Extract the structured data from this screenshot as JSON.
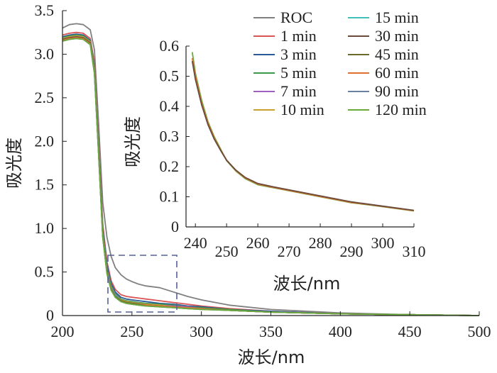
{
  "chart_data": [
    {
      "type": "line",
      "xlabel": "波长/nm",
      "ylabel": "吸光度",
      "xlim": [
        200,
        500
      ],
      "ylim": [
        0,
        3.5
      ],
      "xticks": [
        "200",
        "250",
        "300",
        "350",
        "400",
        "450",
        "500"
      ],
      "yticks": [
        "0",
        "0.5",
        "1.0",
        "1.5",
        "2.0",
        "2.5",
        "3.0",
        "3.5"
      ],
      "grid": false,
      "legend_position": "top-right",
      "series": [
        {
          "name": "ROC",
          "color": "#808080",
          "x": [
            200,
            205,
            210,
            215,
            220,
            223,
            226,
            229,
            232,
            235,
            238,
            242,
            246,
            250,
            255,
            260,
            270,
            280,
            290,
            300,
            320,
            350,
            400,
            450,
            500
          ],
          "y": [
            3.3,
            3.34,
            3.35,
            3.34,
            3.28,
            3.05,
            2.2,
            1.3,
            0.9,
            0.68,
            0.55,
            0.47,
            0.42,
            0.39,
            0.36,
            0.34,
            0.32,
            0.27,
            0.22,
            0.18,
            0.12,
            0.07,
            0.03,
            0.01,
            0.0
          ]
        },
        {
          "name": "1 min",
          "color": "#d95555",
          "x": [
            200,
            205,
            210,
            215,
            220,
            223,
            226,
            229,
            232,
            235,
            238,
            242,
            246,
            250,
            255,
            260,
            270,
            280,
            290,
            300,
            320,
            350,
            400,
            450,
            500
          ],
          "y": [
            3.22,
            3.24,
            3.25,
            3.24,
            3.18,
            2.9,
            2.0,
            1.05,
            0.62,
            0.4,
            0.3,
            0.24,
            0.22,
            0.21,
            0.2,
            0.19,
            0.17,
            0.15,
            0.13,
            0.11,
            0.08,
            0.05,
            0.02,
            0.01,
            0.0
          ]
        },
        {
          "name": "3 min",
          "color": "#2a5a9a",
          "x": [
            200,
            205,
            210,
            215,
            220,
            223,
            226,
            229,
            232,
            235,
            238,
            242,
            246,
            250,
            255,
            260,
            270,
            280,
            290,
            300,
            320,
            350,
            400,
            450,
            500
          ],
          "y": [
            3.2,
            3.22,
            3.23,
            3.22,
            3.16,
            2.86,
            1.95,
            1.0,
            0.58,
            0.37,
            0.27,
            0.21,
            0.19,
            0.18,
            0.17,
            0.16,
            0.14,
            0.13,
            0.11,
            0.1,
            0.07,
            0.05,
            0.02,
            0.01,
            0.0
          ]
        },
        {
          "name": "5 min",
          "color": "#3a9a4a",
          "x": [
            200,
            205,
            210,
            215,
            220,
            223,
            226,
            229,
            232,
            235,
            238,
            242,
            246,
            250,
            255,
            260,
            270,
            280,
            290,
            300,
            320,
            350,
            400,
            450,
            500
          ],
          "y": [
            3.19,
            3.21,
            3.22,
            3.21,
            3.15,
            2.84,
            1.92,
            0.97,
            0.55,
            0.35,
            0.25,
            0.19,
            0.17,
            0.16,
            0.15,
            0.14,
            0.13,
            0.12,
            0.1,
            0.09,
            0.07,
            0.04,
            0.02,
            0.01,
            0.0
          ]
        },
        {
          "name": "7 min",
          "color": "#a060c0",
          "x": [
            200,
            205,
            210,
            215,
            220,
            223,
            226,
            229,
            232,
            235,
            238,
            242,
            246,
            250,
            255,
            260,
            270,
            280,
            290,
            300,
            320,
            350,
            400,
            450,
            500
          ],
          "y": [
            3.18,
            3.2,
            3.21,
            3.2,
            3.14,
            2.82,
            1.9,
            0.95,
            0.53,
            0.33,
            0.24,
            0.18,
            0.16,
            0.15,
            0.14,
            0.13,
            0.12,
            0.11,
            0.1,
            0.08,
            0.06,
            0.04,
            0.02,
            0.01,
            0.0
          ]
        },
        {
          "name": "10 min",
          "color": "#c8a030",
          "x": [
            200,
            205,
            210,
            215,
            220,
            223,
            226,
            229,
            232,
            235,
            238,
            242,
            246,
            250,
            255,
            260,
            270,
            280,
            290,
            300,
            320,
            350,
            400,
            450,
            500
          ],
          "y": [
            3.18,
            3.2,
            3.21,
            3.2,
            3.14,
            2.82,
            1.89,
            0.94,
            0.52,
            0.32,
            0.23,
            0.18,
            0.16,
            0.15,
            0.14,
            0.13,
            0.12,
            0.1,
            0.09,
            0.08,
            0.06,
            0.04,
            0.02,
            0.01,
            0.0
          ]
        },
        {
          "name": "15 min",
          "color": "#40c0b8",
          "x": [
            200,
            205,
            210,
            215,
            220,
            223,
            226,
            229,
            232,
            235,
            238,
            242,
            246,
            250,
            255,
            260,
            270,
            280,
            290,
            300,
            320,
            350,
            400,
            450,
            500
          ],
          "y": [
            3.17,
            3.19,
            3.2,
            3.19,
            3.13,
            2.8,
            1.88,
            0.93,
            0.51,
            0.31,
            0.23,
            0.17,
            0.15,
            0.14,
            0.13,
            0.12,
            0.11,
            0.1,
            0.09,
            0.08,
            0.06,
            0.04,
            0.02,
            0.01,
            0.0
          ]
        },
        {
          "name": "30 min",
          "color": "#6a4a3a",
          "x": [
            200,
            205,
            210,
            215,
            220,
            223,
            226,
            229,
            232,
            235,
            238,
            242,
            246,
            250,
            255,
            260,
            270,
            280,
            290,
            300,
            320,
            350,
            400,
            450,
            500
          ],
          "y": [
            3.17,
            3.19,
            3.2,
            3.19,
            3.13,
            2.8,
            1.87,
            0.92,
            0.5,
            0.31,
            0.22,
            0.17,
            0.15,
            0.14,
            0.13,
            0.12,
            0.11,
            0.1,
            0.09,
            0.08,
            0.06,
            0.04,
            0.02,
            0.01,
            0.0
          ]
        },
        {
          "name": "45 min",
          "color": "#6a6a2a",
          "x": [
            200,
            205,
            210,
            215,
            220,
            223,
            226,
            229,
            232,
            235,
            238,
            242,
            246,
            250,
            255,
            260,
            270,
            280,
            290,
            300,
            320,
            350,
            400,
            450,
            500
          ],
          "y": [
            3.16,
            3.18,
            3.19,
            3.18,
            3.12,
            2.79,
            1.86,
            0.91,
            0.5,
            0.3,
            0.22,
            0.17,
            0.15,
            0.14,
            0.13,
            0.12,
            0.11,
            0.1,
            0.09,
            0.08,
            0.06,
            0.04,
            0.02,
            0.01,
            0.0
          ]
        },
        {
          "name": "60 min",
          "color": "#e07030",
          "x": [
            200,
            205,
            210,
            215,
            220,
            223,
            226,
            229,
            232,
            235,
            238,
            242,
            246,
            250,
            255,
            260,
            270,
            280,
            290,
            300,
            320,
            350,
            400,
            450,
            500
          ],
          "y": [
            3.16,
            3.18,
            3.19,
            3.18,
            3.12,
            2.79,
            1.86,
            0.91,
            0.49,
            0.3,
            0.21,
            0.16,
            0.14,
            0.13,
            0.12,
            0.12,
            0.11,
            0.1,
            0.09,
            0.08,
            0.06,
            0.04,
            0.02,
            0.01,
            0.0
          ]
        },
        {
          "name": "90 min",
          "color": "#6a80a0",
          "x": [
            200,
            205,
            210,
            215,
            220,
            223,
            226,
            229,
            232,
            235,
            238,
            242,
            246,
            250,
            255,
            260,
            270,
            280,
            290,
            300,
            320,
            350,
            400,
            450,
            500
          ],
          "y": [
            3.15,
            3.17,
            3.18,
            3.17,
            3.11,
            2.78,
            1.85,
            0.9,
            0.49,
            0.3,
            0.21,
            0.16,
            0.14,
            0.13,
            0.12,
            0.11,
            0.1,
            0.09,
            0.08,
            0.07,
            0.06,
            0.04,
            0.02,
            0.01,
            0.0
          ]
        },
        {
          "name": "120 min",
          "color": "#6aaa3a",
          "x": [
            200,
            205,
            210,
            215,
            220,
            223,
            226,
            229,
            232,
            235,
            238,
            242,
            246,
            250,
            255,
            260,
            270,
            280,
            290,
            300,
            320,
            350,
            400,
            450,
            500
          ],
          "y": [
            3.15,
            3.17,
            3.18,
            3.17,
            3.11,
            2.78,
            1.85,
            0.9,
            0.48,
            0.29,
            0.21,
            0.16,
            0.14,
            0.13,
            0.12,
            0.11,
            0.1,
            0.09,
            0.08,
            0.07,
            0.06,
            0.04,
            0.02,
            0.01,
            0.0
          ]
        }
      ]
    },
    {
      "type": "line",
      "xlabel": "波长/nm",
      "ylabel": "吸光度",
      "xlim": [
        237,
        310
      ],
      "ylim": [
        0,
        0.6
      ],
      "xticks": [
        "240",
        "250",
        "260",
        "270",
        "280",
        "290",
        "300",
        "310"
      ],
      "yticks": [
        "0",
        "0.1",
        "0.2",
        "0.3",
        "0.4",
        "0.5",
        "0.6"
      ],
      "grid": false,
      "series": [
        {
          "name": "120 min",
          "color": "#6aaa3a",
          "x": [
            239,
            240,
            242,
            244,
            246,
            248,
            250,
            253,
            256,
            260,
            265,
            270,
            275,
            280,
            285,
            290,
            295,
            300,
            305,
            310
          ],
          "y": [
            0.58,
            0.51,
            0.42,
            0.35,
            0.3,
            0.26,
            0.22,
            0.185,
            0.16,
            0.14,
            0.13,
            0.12,
            0.11,
            0.1,
            0.09,
            0.08,
            0.074,
            0.067,
            0.06,
            0.053
          ]
        },
        {
          "name": "60 min",
          "color": "#e07030",
          "x": [
            239,
            240,
            242,
            244,
            246,
            248,
            250,
            253,
            256,
            260,
            265,
            270,
            275,
            280,
            285,
            290,
            295,
            300,
            305,
            310
          ],
          "y": [
            0.56,
            0.5,
            0.41,
            0.345,
            0.295,
            0.257,
            0.222,
            0.187,
            0.162,
            0.142,
            0.131,
            0.121,
            0.111,
            0.101,
            0.091,
            0.081,
            0.075,
            0.068,
            0.061,
            0.054
          ]
        },
        {
          "name": "30 min",
          "color": "#6a4a3a",
          "x": [
            239,
            240,
            242,
            244,
            246,
            248,
            250,
            253,
            256,
            260,
            265,
            270,
            275,
            280,
            285,
            290,
            295,
            300,
            305,
            310
          ],
          "y": [
            0.55,
            0.49,
            0.405,
            0.34,
            0.292,
            0.255,
            0.221,
            0.188,
            0.164,
            0.144,
            0.133,
            0.123,
            0.113,
            0.103,
            0.093,
            0.083,
            0.076,
            0.069,
            0.062,
            0.055
          ]
        }
      ]
    }
  ]
}
